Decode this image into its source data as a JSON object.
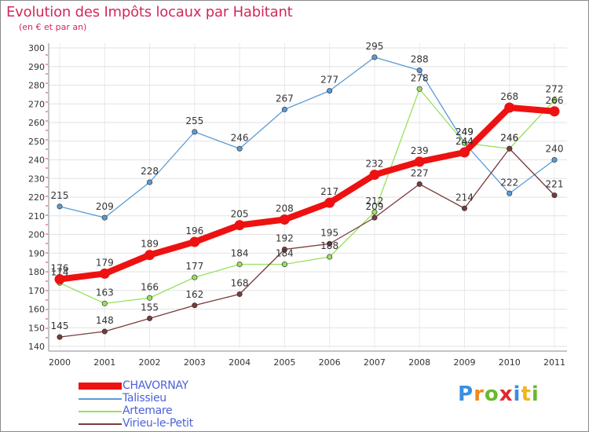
{
  "brand": "Proxiti",
  "chart_data": {
    "type": "line",
    "title": "Evolution des Impôts locaux par Habitant",
    "subtitle": "(en € et par an)",
    "xlabel": "",
    "ylabel": "",
    "ylim": [
      140,
      300
    ],
    "yticks": [
      140,
      150,
      160,
      170,
      180,
      190,
      200,
      210,
      220,
      230,
      240,
      250,
      260,
      270,
      280,
      290,
      300
    ],
    "categories": [
      "2000",
      "2001",
      "2002",
      "2003",
      "2004",
      "2005",
      "2006",
      "2007",
      "2008",
      "2009",
      "2010",
      "2011"
    ],
    "series": [
      {
        "name": "CHAVORNAY",
        "color": "#ee1111",
        "values": [
          176,
          179,
          189,
          196,
          205,
          208,
          217,
          232,
          239,
          244,
          268,
          266
        ]
      },
      {
        "name": "Talissieu",
        "color": "#5a9bd5",
        "values": [
          215,
          209,
          228,
          255,
          246,
          267,
          277,
          295,
          288,
          249,
          222,
          240
        ]
      },
      {
        "name": "Artemare",
        "color": "#99e060",
        "values": [
          174,
          163,
          166,
          177,
          184,
          184,
          188,
          212,
          278,
          249,
          246,
          272
        ]
      },
      {
        "name": "Virieu-le-Petit",
        "color": "#7a3a3a",
        "values": [
          145,
          148,
          155,
          162,
          168,
          192,
          195,
          209,
          227,
          214,
          246,
          221
        ]
      }
    ]
  }
}
